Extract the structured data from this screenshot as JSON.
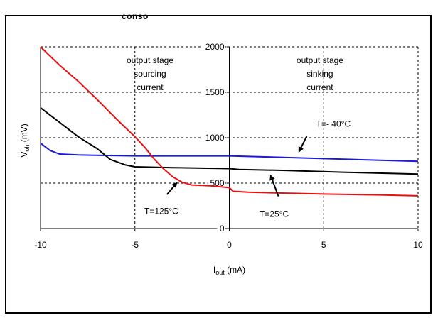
{
  "header_fragment": "conso",
  "chart_data": {
    "type": "line",
    "xlabel_main": "I",
    "xlabel_sub": "out",
    "xlabel_unit": " (mA)",
    "ylabel_main": "V",
    "ylabel_sub": "oh",
    "ylabel_unit": " (mV)",
    "xlim": [
      -10,
      10
    ],
    "ylim": [
      0,
      2000
    ],
    "x_ticks": [
      -10,
      -5,
      0,
      5,
      10
    ],
    "y_ticks": [
      0,
      500,
      1000,
      1500,
      2000
    ],
    "x_tick_labels": [
      "-10",
      "-5",
      "0",
      "5",
      "10"
    ],
    "y_tick_labels": [
      "0",
      "500",
      "1000",
      "1500",
      "2000"
    ],
    "grid": true,
    "region_labels": [
      {
        "lines": [
          "output stage",
          "sourcing",
          "current"
        ],
        "x": -4.2,
        "y": 1820
      },
      {
        "lines": [
          "output stage",
          "sinking",
          "current"
        ],
        "x": 4.8,
        "y": 1820
      }
    ],
    "series": [
      {
        "name": "T=- 40°C",
        "color": "#1a1ad6",
        "points": [
          [
            -10,
            940
          ],
          [
            -9.5,
            860
          ],
          [
            -9,
            820
          ],
          [
            -8,
            810
          ],
          [
            -5,
            800
          ],
          [
            0,
            800
          ],
          [
            5,
            770
          ],
          [
            10,
            740
          ]
        ]
      },
      {
        "name": "T=25°C",
        "color": "#000000",
        "points": [
          [
            -10,
            1330
          ],
          [
            -9,
            1170
          ],
          [
            -8,
            1010
          ],
          [
            -7,
            880
          ],
          [
            -6.3,
            760
          ],
          [
            -5.5,
            700
          ],
          [
            -5,
            680
          ],
          [
            -3,
            670
          ],
          [
            0,
            660
          ],
          [
            0.5,
            650
          ],
          [
            3,
            640
          ],
          [
            6,
            620
          ],
          [
            10,
            600
          ]
        ]
      },
      {
        "name": "T=125°C",
        "color": "#e81010",
        "points": [
          [
            -10,
            2000
          ],
          [
            -9,
            1800
          ],
          [
            -8,
            1620
          ],
          [
            -7,
            1420
          ],
          [
            -6,
            1210
          ],
          [
            -5,
            1010
          ],
          [
            -4.5,
            900
          ],
          [
            -4,
            770
          ],
          [
            -3.5,
            660
          ],
          [
            -3,
            570
          ],
          [
            -2.5,
            510
          ],
          [
            -2,
            480
          ],
          [
            -1,
            470
          ],
          [
            0,
            450
          ],
          [
            0.2,
            410
          ],
          [
            1,
            400
          ],
          [
            3,
            390
          ],
          [
            5,
            380
          ],
          [
            8,
            370
          ],
          [
            10,
            360
          ]
        ]
      }
    ],
    "annotations": [
      {
        "text": "T=- 40°C",
        "x": 4.6,
        "y": 1120,
        "arrow_from": [
          4.1,
          1015
        ],
        "arrow_to": [
          3.7,
          850
        ],
        "series_index": 0
      },
      {
        "text": "T=25°C",
        "x": 1.6,
        "y": 130,
        "arrow_from": [
          2.6,
          355
        ],
        "arrow_to": [
          2.2,
          580
        ],
        "series_index": 1
      },
      {
        "text": "T=125°C",
        "x": -4.5,
        "y": 160,
        "arrow_from": [
          -3.3,
          375
        ],
        "arrow_to": [
          -2.8,
          500
        ],
        "series_index": 2
      }
    ]
  }
}
